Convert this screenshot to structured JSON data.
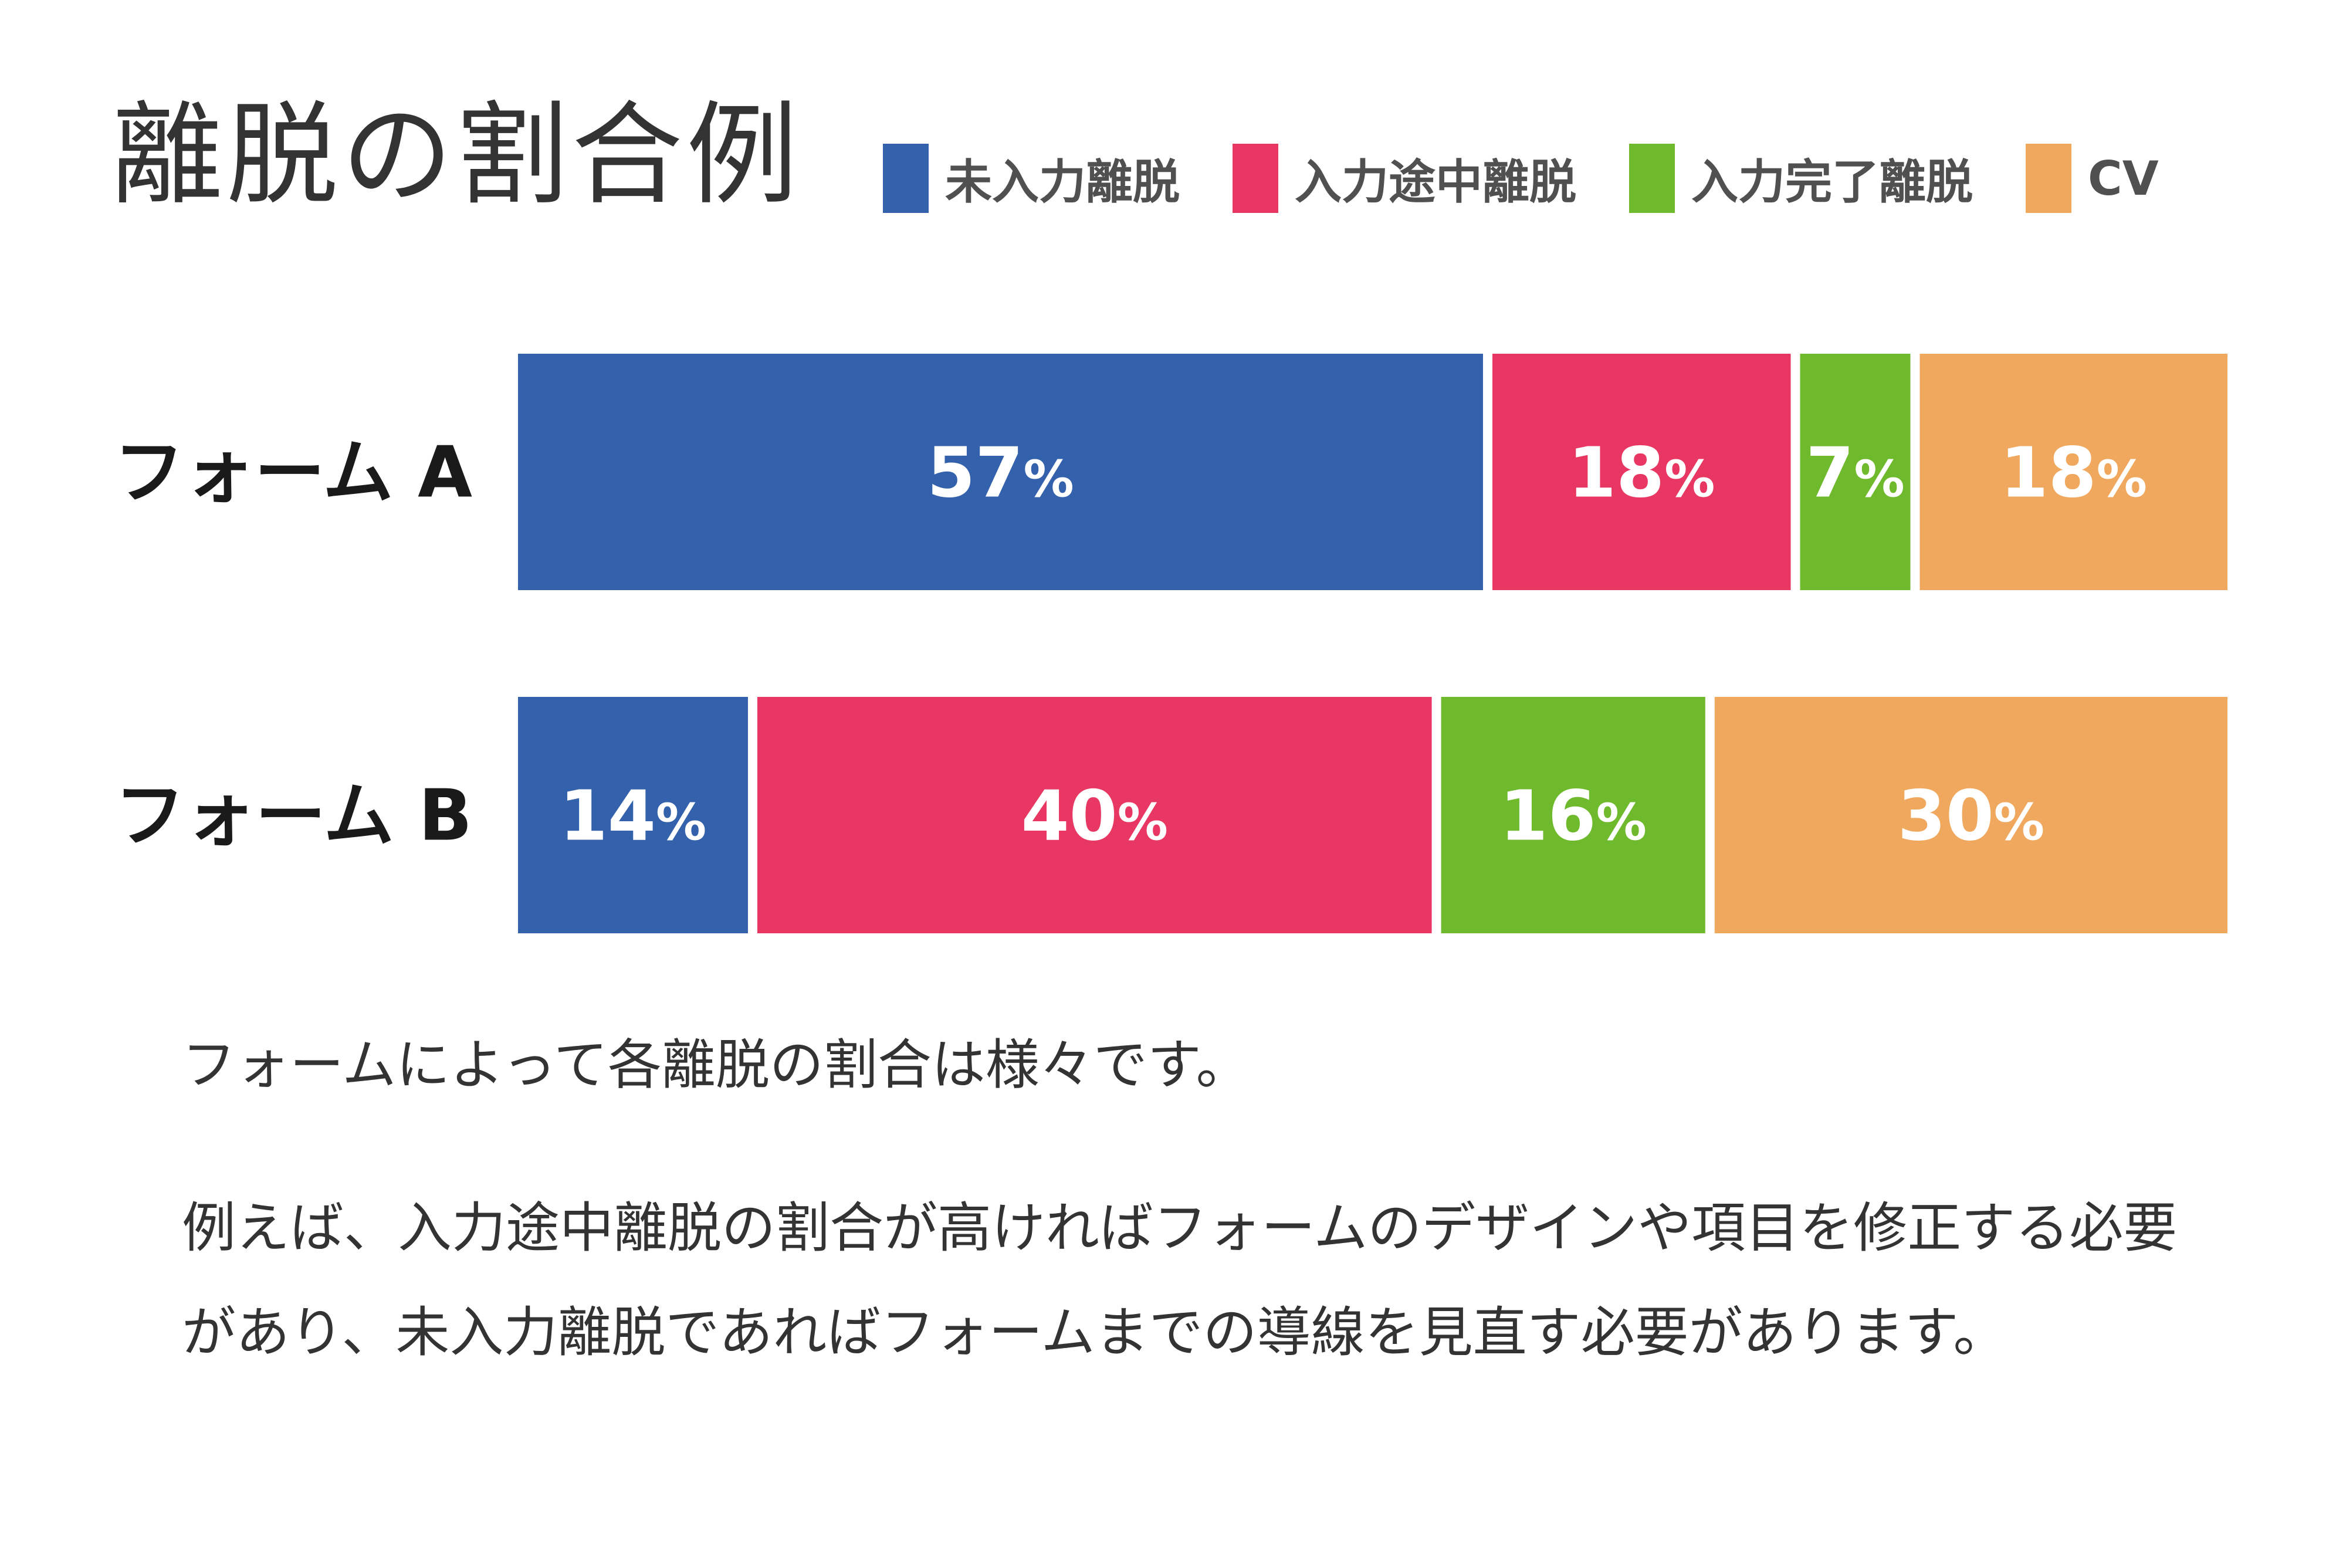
{
  "title": "離脱の割合例",
  "legend": [
    {
      "label": "未入力離脱",
      "color": "#3461ac"
    },
    {
      "label": "入力途中離脱",
      "color": "#e83762"
    },
    {
      "label": "入力完了離脱",
      "color": "#6fb92c"
    },
    {
      "label": "CV",
      "color": "#f0a85e"
    }
  ],
  "chart_data": {
    "type": "bar",
    "stacked": true,
    "orientation": "horizontal",
    "categories": [
      "フォーム A",
      "フォーム B"
    ],
    "series": [
      {
        "name": "未入力離脱",
        "color": "#3461ac",
        "values": [
          57,
          14
        ]
      },
      {
        "name": "入力途中離脱",
        "color": "#e83762",
        "values": [
          18,
          40
        ]
      },
      {
        "name": "入力完了離脱",
        "color": "#6fb92c",
        "values": [
          7,
          16
        ]
      },
      {
        "name": "CV",
        "color": "#f0a85e",
        "values": [
          18,
          30
        ]
      }
    ],
    "value_suffix": "%",
    "xlim": [
      0,
      100
    ]
  },
  "text": {
    "para1": "フォームによって各離脱の割合は様々です。",
    "para2": "例えば、入力途中離脱の割合が高ければフォームのデザインや項目を修正する必要があり、未入力離脱であればフォームまでの導線を見直す必要があります。"
  }
}
